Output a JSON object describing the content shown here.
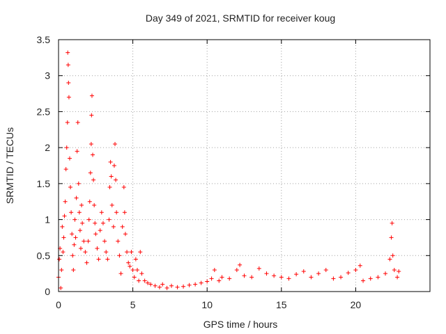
{
  "chart_data": {
    "type": "scatter",
    "title": "Day 349 of 2021, SRMTID for receiver koug",
    "xlabel": "GPS time / hours",
    "ylabel": "SRMTID / TECUs",
    "xlim": [
      0,
      25
    ],
    "ylim": [
      0,
      3.5
    ],
    "xticks": [
      0,
      5,
      10,
      15,
      20
    ],
    "yticks": [
      0,
      0.5,
      1,
      1.5,
      2,
      2.5,
      3,
      3.5
    ],
    "xtick_labels": [
      "0",
      "5",
      "10",
      "15",
      "20"
    ],
    "ytick_labels": [
      "0",
      "0.5",
      "1",
      "1.5",
      "2",
      "2.5",
      "3",
      "3.5"
    ],
    "grid": true,
    "marker": "+",
    "series": [
      {
        "name": "SRMTID",
        "color": "#ff0000",
        "points": [
          [
            0.0,
            0.2
          ],
          [
            0.05,
            0.45
          ],
          [
            0.1,
            0.6
          ],
          [
            0.15,
            0.05
          ],
          [
            0.2,
            0.3
          ],
          [
            0.25,
            0.9
          ],
          [
            0.3,
            0.55
          ],
          [
            0.35,
            0.75
          ],
          [
            0.4,
            1.05
          ],
          [
            0.45,
            1.25
          ],
          [
            0.5,
            1.7
          ],
          [
            0.55,
            2.0
          ],
          [
            0.6,
            2.35
          ],
          [
            0.62,
            3.32
          ],
          [
            0.65,
            3.15
          ],
          [
            0.67,
            2.9
          ],
          [
            0.7,
            2.7
          ],
          [
            0.75,
            1.85
          ],
          [
            0.8,
            1.45
          ],
          [
            0.85,
            1.1
          ],
          [
            0.9,
            0.8
          ],
          [
            0.95,
            0.5
          ],
          [
            1.0,
            0.3
          ],
          [
            1.05,
            0.65
          ],
          [
            1.1,
            1.0
          ],
          [
            1.15,
            0.75
          ],
          [
            1.2,
            1.3
          ],
          [
            1.25,
            1.95
          ],
          [
            1.3,
            2.35
          ],
          [
            1.35,
            1.5
          ],
          [
            1.4,
            1.1
          ],
          [
            1.45,
            0.85
          ],
          [
            1.5,
            0.6
          ],
          [
            1.55,
            1.2
          ],
          [
            1.6,
            0.95
          ],
          [
            1.7,
            0.7
          ],
          [
            1.8,
            0.55
          ],
          [
            1.9,
            0.4
          ],
          [
            2.0,
            0.7
          ],
          [
            2.05,
            1.0
          ],
          [
            2.1,
            1.25
          ],
          [
            2.15,
            1.65
          ],
          [
            2.2,
            2.05
          ],
          [
            2.22,
            2.45
          ],
          [
            2.25,
            2.72
          ],
          [
            2.3,
            1.9
          ],
          [
            2.35,
            1.55
          ],
          [
            2.4,
            1.2
          ],
          [
            2.45,
            0.95
          ],
          [
            2.5,
            0.8
          ],
          [
            2.6,
            0.6
          ],
          [
            2.7,
            0.45
          ],
          [
            2.8,
            0.85
          ],
          [
            2.9,
            1.1
          ],
          [
            3.0,
            0.95
          ],
          [
            3.1,
            0.7
          ],
          [
            3.2,
            0.55
          ],
          [
            3.3,
            0.45
          ],
          [
            3.4,
            1.0
          ],
          [
            3.45,
            1.45
          ],
          [
            3.5,
            1.8
          ],
          [
            3.55,
            1.6
          ],
          [
            3.6,
            1.2
          ],
          [
            3.7,
            0.9
          ],
          [
            3.75,
            1.75
          ],
          [
            3.8,
            2.05
          ],
          [
            3.85,
            1.55
          ],
          [
            3.9,
            1.1
          ],
          [
            4.0,
            0.7
          ],
          [
            4.1,
            0.5
          ],
          [
            4.2,
            0.25
          ],
          [
            4.3,
            0.9
          ],
          [
            4.4,
            1.45
          ],
          [
            4.45,
            1.1
          ],
          [
            4.5,
            0.8
          ],
          [
            4.6,
            0.55
          ],
          [
            4.7,
            0.4
          ],
          [
            4.8,
            0.35
          ],
          [
            4.9,
            0.55
          ],
          [
            5.0,
            0.3
          ],
          [
            5.1,
            0.2
          ],
          [
            5.2,
            0.45
          ],
          [
            5.3,
            0.3
          ],
          [
            5.4,
            0.15
          ],
          [
            5.5,
            0.55
          ],
          [
            5.6,
            0.25
          ],
          [
            5.8,
            0.15
          ],
          [
            6.0,
            0.12
          ],
          [
            6.2,
            0.1
          ],
          [
            6.5,
            0.08
          ],
          [
            6.8,
            0.06
          ],
          [
            7.0,
            0.1
          ],
          [
            7.3,
            0.05
          ],
          [
            7.6,
            0.08
          ],
          [
            8.0,
            0.06
          ],
          [
            8.4,
            0.07
          ],
          [
            8.8,
            0.09
          ],
          [
            9.2,
            0.1
          ],
          [
            9.6,
            0.12
          ],
          [
            10.0,
            0.14
          ],
          [
            10.3,
            0.18
          ],
          [
            10.5,
            0.3
          ],
          [
            10.8,
            0.15
          ],
          [
            11.0,
            0.2
          ],
          [
            11.5,
            0.18
          ],
          [
            12.0,
            0.3
          ],
          [
            12.2,
            0.37
          ],
          [
            12.5,
            0.22
          ],
          [
            13.0,
            0.2
          ],
          [
            13.5,
            0.32
          ],
          [
            14.0,
            0.25
          ],
          [
            14.5,
            0.22
          ],
          [
            15.0,
            0.2
          ],
          [
            15.5,
            0.18
          ],
          [
            16.0,
            0.24
          ],
          [
            16.5,
            0.28
          ],
          [
            17.0,
            0.2
          ],
          [
            17.5,
            0.25
          ],
          [
            18.0,
            0.3
          ],
          [
            18.5,
            0.18
          ],
          [
            19.0,
            0.2
          ],
          [
            19.5,
            0.26
          ],
          [
            20.0,
            0.3
          ],
          [
            20.3,
            0.36
          ],
          [
            20.5,
            0.15
          ],
          [
            21.0,
            0.18
          ],
          [
            21.5,
            0.2
          ],
          [
            22.0,
            0.25
          ],
          [
            22.3,
            0.45
          ],
          [
            22.4,
            0.75
          ],
          [
            22.45,
            0.95
          ],
          [
            22.5,
            0.5
          ],
          [
            22.6,
            0.3
          ],
          [
            22.8,
            0.2
          ],
          [
            22.9,
            0.28
          ]
        ]
      }
    ]
  }
}
